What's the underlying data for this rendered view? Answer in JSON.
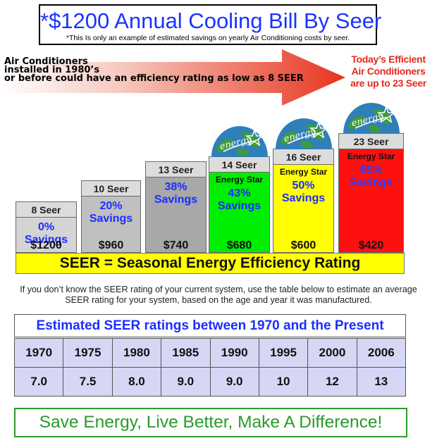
{
  "header": {
    "title": "*$1200 Annual Cooling Bill By Seer",
    "subtitle": "*This Is only an example of estimated savings on yearly Air Conditioning costs by seer."
  },
  "arrow": {
    "left_note": [
      "Air Conditioners",
      "installed in 1980’s",
      "or before could have an efficiency rating as low as 8 SEER"
    ],
    "right_note": [
      "Today’s Efficient",
      "Air Conditioners",
      "are up to 23 Seer"
    ]
  },
  "chart_data": {
    "type": "bar",
    "categories": [
      "8 Seer",
      "10 Seer",
      "13 Seer",
      "14 Seer",
      "16 Seer",
      "23 Seer"
    ],
    "series": [
      {
        "name": "Savings",
        "values": [
          0,
          20,
          38,
          43,
          50,
          65
        ]
      },
      {
        "name": "Cost",
        "values": [
          1200,
          960,
          740,
          680,
          600,
          420
        ]
      }
    ],
    "savings_labels": [
      "0%",
      "20%",
      "38%",
      "43%",
      "50%",
      "65%"
    ],
    "savings_word": "Savings",
    "cost_labels": [
      "$1200",
      "$960",
      "$740",
      "$680",
      "$600",
      "$420"
    ],
    "energy_star_label": "Energy Star",
    "energy_star": [
      false,
      false,
      false,
      true,
      true,
      true
    ],
    "colors": [
      "#d4d4d4",
      "#c0c0c0",
      "#a8a8a8",
      "#00ee00",
      "#ffff00",
      "#ff1010"
    ],
    "globe_text": "energy"
  },
  "seer_banner": "SEER  =  Seasonal Energy Efficiency Rating",
  "instructions": "If you don’t know the SEER rating of your current system, use the table below to estimate an average SEER rating for your system, based on the age and year it was manufactured.",
  "table": {
    "title": "Estimated SEER ratings between 1970 and the Present",
    "years": [
      "1970",
      "1975",
      "1980",
      "1985",
      "1990",
      "1995",
      "2000",
      "2006"
    ],
    "ratings": [
      "7.0",
      "7.5",
      "8.0",
      "9.0",
      "9.0",
      "10",
      "12",
      "13"
    ]
  },
  "footer": "Save Energy, Live Better, Make A Difference!"
}
